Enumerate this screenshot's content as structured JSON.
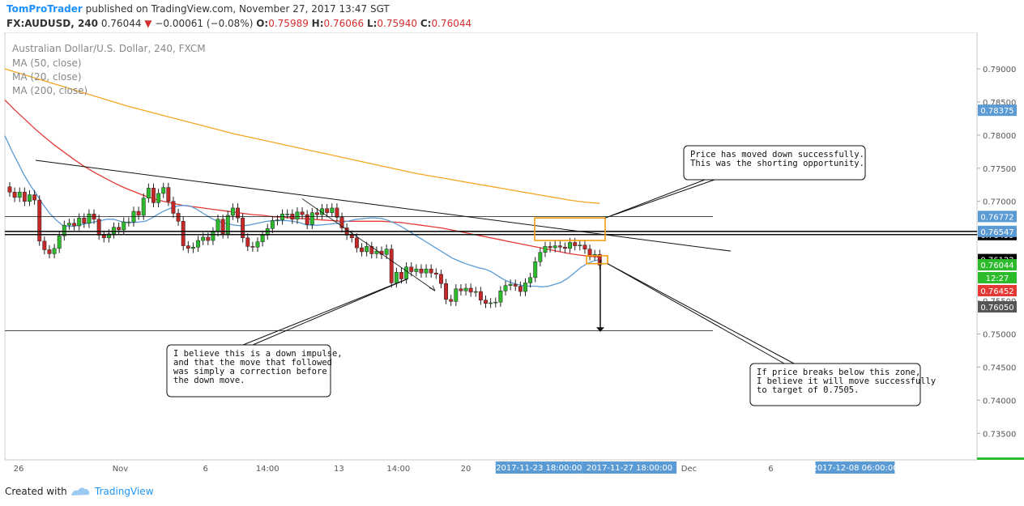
{
  "header": {
    "author": "TomProTrader",
    "published_text": " published on TradingView.com, November 27, 2017 13:47 SGT",
    "symbol": "FX:AUDUSD, 240",
    "last": "0.76044",
    "change": "−0.00061 (−0.08%)",
    "o_label": "O:",
    "o_value": "0.75989",
    "h_label": "H:",
    "h_value": "0.76066",
    "l_label": "L:",
    "l_value": "0.75940",
    "c_label": "C:",
    "c_value": "0.76044"
  },
  "footer": {
    "created_with": "Created with",
    "brand": "TradingView"
  },
  "colors": {
    "up": "#2bbb2b",
    "down": "#c62828",
    "ma50": "#e53935",
    "ma20": "#5b9bd5",
    "ma200": "#f5a623",
    "zone": "#f39c12"
  },
  "chart_data": {
    "type": "candlestick",
    "title": "Australian Dollar/U.S. Dollar, 240, FXCM",
    "legend": [
      "MA (50, close)",
      "MA (20, close)",
      "MA (200, close)"
    ],
    "ylim": [
      0.731,
      0.7955
    ],
    "y_ticks": [
      "0.79000",
      "0.78500",
      "0.78000",
      "0.77500",
      "0.77000",
      "0.76500",
      "0.75500",
      "0.75000",
      "0.74500",
      "0.74000",
      "0.73500"
    ],
    "x_ticks": [
      "26",
      "Nov",
      "6",
      "14:00",
      "13",
      "14:00",
      "20",
      "Dec",
      "6",
      "14:00"
    ],
    "x_highlight": [
      "2017-11-23 18:00:00",
      "2017-11-27 18:00:00",
      "2017-12-08 06:00:00"
    ],
    "price_tags": [
      {
        "value": "0.78375",
        "color": "#5b9bd5"
      },
      {
        "value": "0.76499",
        "color": "#000000"
      },
      {
        "value": "0.76772",
        "color": "#5b9bd5"
      },
      {
        "value": "0.76547",
        "color": "#5b9bd5"
      },
      {
        "value": "0.76122",
        "color": "#000000"
      },
      {
        "value": "0.76044",
        "color": "#2bbb2b"
      },
      {
        "value": "12:27",
        "color": "#2bbb2b"
      },
      {
        "value": "0.76452",
        "color": "#e53935"
      },
      {
        "value": "0.76050",
        "color": "#555555"
      }
    ],
    "horizontal_levels": [
      0.76499,
      0.76772,
      0.76547,
      0.7505
    ],
    "closes": [
      0.7714,
      0.7706,
      0.7714,
      0.77,
      0.771,
      0.7702,
      0.764,
      0.7627,
      0.7621,
      0.7629,
      0.7648,
      0.7664,
      0.7667,
      0.7663,
      0.7675,
      0.7667,
      0.7681,
      0.7673,
      0.7649,
      0.7645,
      0.7651,
      0.7661,
      0.7657,
      0.7669,
      0.7669,
      0.7685,
      0.7679,
      0.7705,
      0.772,
      0.7698,
      0.7712,
      0.7721,
      0.77,
      0.7682,
      0.767,
      0.7633,
      0.7629,
      0.7631,
      0.7641,
      0.7646,
      0.7641,
      0.7654,
      0.7673,
      0.7651,
      0.7679,
      0.769,
      0.7675,
      0.7645,
      0.7632,
      0.7631,
      0.7639,
      0.7649,
      0.7659,
      0.7671,
      0.7672,
      0.7681,
      0.7681,
      0.7673,
      0.7684,
      0.768,
      0.7665,
      0.7683,
      0.768,
      0.7689,
      0.7683,
      0.769,
      0.7676,
      0.766,
      0.7649,
      0.7645,
      0.763,
      0.7624,
      0.7632,
      0.7621,
      0.7625,
      0.762,
      0.7628,
      0.7577,
      0.7593,
      0.7583,
      0.7601,
      0.7594,
      0.7598,
      0.7592,
      0.7598,
      0.7592,
      0.759,
      0.7576,
      0.7552,
      0.7549,
      0.7568,
      0.7565,
      0.7569,
      0.7563,
      0.7564,
      0.7551,
      0.7546,
      0.7547,
      0.7548,
      0.7565,
      0.7573,
      0.7575,
      0.7572,
      0.7564,
      0.7577,
      0.7585,
      0.7609,
      0.7623,
      0.7632,
      0.763,
      0.7633,
      0.7631,
      0.7629,
      0.7638,
      0.7633,
      0.7634,
      0.7628,
      0.7618,
      0.762,
      0.7604
    ],
    "ma20": [
      0.7799,
      0.7778,
      0.7759,
      0.774,
      0.7724,
      0.771,
      0.7695,
      0.7682,
      0.7672,
      0.7664,
      0.7662,
      0.7663,
      0.7665,
      0.7667,
      0.7669,
      0.7671,
      0.7673,
      0.7673,
      0.767,
      0.7668,
      0.7668,
      0.7669,
      0.767,
      0.7675,
      0.7681,
      0.7686,
      0.769,
      0.7693,
      0.7694,
      0.7693,
      0.7688,
      0.7682,
      0.7676,
      0.7671,
      0.7668,
      0.7666,
      0.7664,
      0.7663,
      0.7664,
      0.7666,
      0.7668,
      0.767,
      0.7671,
      0.7671,
      0.7671,
      0.767,
      0.7668,
      0.7665,
      0.7664,
      0.7664,
      0.7665,
      0.7666,
      0.7667,
      0.7669,
      0.7671,
      0.7673,
      0.7674,
      0.7675,
      0.7675,
      0.7674,
      0.7671,
      0.7667,
      0.7662,
      0.7656,
      0.765,
      0.7644,
      0.7638,
      0.7632,
      0.7626,
      0.762,
      0.7614,
      0.761,
      0.7606,
      0.7603,
      0.76,
      0.7598,
      0.7594,
      0.7588,
      0.7582,
      0.7578,
      0.7575,
      0.7573,
      0.7572,
      0.7572,
      0.7571,
      0.7572,
      0.7575,
      0.7578,
      0.7584,
      0.7592,
      0.76,
      0.7606,
      0.761,
      0.7612
    ],
    "ma50": [
      0.7853,
      0.7838,
      0.7824,
      0.781,
      0.7797,
      0.7785,
      0.7774,
      0.7763,
      0.7753,
      0.7744,
      0.7736,
      0.7728,
      0.7721,
      0.7715,
      0.7709,
      0.7704,
      0.77,
      0.7697,
      0.7694,
      0.7692,
      0.769,
      0.7688,
      0.7686,
      0.7684,
      0.7682,
      0.768,
      0.7679,
      0.7677,
      0.7676,
      0.7675,
      0.7674,
      0.7673,
      0.7672,
      0.7671,
      0.767,
      0.767,
      0.767,
      0.767,
      0.767,
      0.7669,
      0.7668,
      0.7666,
      0.7664,
      0.7662,
      0.766,
      0.7657,
      0.7654,
      0.7651,
      0.7648,
      0.7645,
      0.7642,
      0.7639,
      0.7636,
      0.7633,
      0.763,
      0.7627,
      0.7624,
      0.7621,
      0.7619,
      0.7617,
      0.7616
    ],
    "ma200": [
      0.79,
      0.7893,
      0.7886,
      0.7879,
      0.7872,
      0.7865,
      0.7858,
      0.7851,
      0.7844,
      0.7838,
      0.7832,
      0.7826,
      0.782,
      0.7814,
      0.7808,
      0.7802,
      0.7797,
      0.7792,
      0.7787,
      0.7782,
      0.7777,
      0.7772,
      0.7767,
      0.7762,
      0.7757,
      0.7752,
      0.7747,
      0.7742,
      0.7738,
      0.7734,
      0.773,
      0.7726,
      0.7722,
      0.7718,
      0.7714,
      0.771,
      0.7706,
      0.7702,
      0.7699,
      0.7697
    ],
    "annotations": [
      {
        "lines": [
          "Price has moved down successfully.",
          "This was the shorting opportunity."
        ]
      },
      {
        "lines": [
          "I believe this is a down impulse,",
          "and that the move that followed",
          "was simply a correction before",
          "the down move."
        ]
      },
      {
        "lines": [
          "If price breaks below this zone,",
          "I believe it will move successfully",
          "to target of 0.7505."
        ]
      }
    ]
  }
}
